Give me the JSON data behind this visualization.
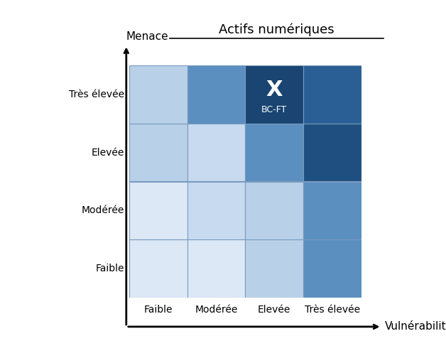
{
  "title": "Actifs numériques",
  "xlabel": "Vulnérabilité",
  "ylabel": "Menace",
  "x_labels": [
    "Faible",
    "Modérée",
    "Elevée",
    "Très élevée"
  ],
  "y_labels": [
    "Faible",
    "Modérée",
    "Elevée",
    "Très élevée"
  ],
  "marker_col": 2,
  "marker_row": 3,
  "marker_label": "BC-FT",
  "colors": [
    [
      "#dce8f5",
      "#dce8f5",
      "#b8d0e8",
      "#5b8fc0"
    ],
    [
      "#dce8f5",
      "#c8daf0",
      "#b8d0e8",
      "#5b8fc0"
    ],
    [
      "#b8d0e8",
      "#c8daf0",
      "#5b8fc0",
      "#1e4f80"
    ],
    [
      "#b8d0e8",
      "#5b8fc0",
      "#1a4572",
      "#2a5f96"
    ]
  ],
  "background": "#ffffff",
  "title_fontsize": 13,
  "axis_label_fontsize": 11,
  "tick_fontsize": 10
}
